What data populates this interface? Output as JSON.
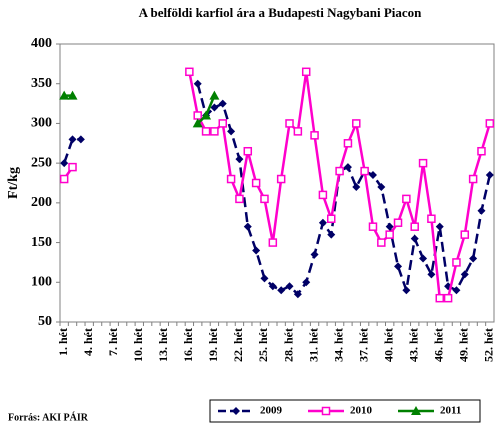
{
  "chart_data": {
    "type": "line",
    "title": "A belföldi karfiol ára a Budapesti Nagybani Piacon",
    "y_label": "Ft/kg",
    "source": "Forrás: AKI PÁIR",
    "categories": [
      "1. hét",
      null,
      null,
      "4. hét",
      null,
      null,
      "7. hét",
      null,
      null,
      "10. hét",
      null,
      null,
      "13. hét",
      null,
      null,
      "16. hét",
      null,
      null,
      "19. hét",
      null,
      null,
      "22. hét",
      null,
      null,
      "25. hét",
      null,
      null,
      "28. hét",
      null,
      null,
      "31. hét",
      null,
      null,
      "34. hét",
      null,
      null,
      "37. hét",
      null,
      null,
      "40. hét",
      null,
      null,
      "43. hét",
      null,
      null,
      "46. hét",
      null,
      null,
      "49. hét",
      null,
      null,
      "52. hét"
    ],
    "series": [
      {
        "name": "2009",
        "color": "#000066",
        "line_style": "dashed",
        "marker": "diamond",
        "values": [
          250,
          280,
          280,
          null,
          null,
          null,
          null,
          null,
          null,
          null,
          null,
          null,
          null,
          null,
          null,
          null,
          350,
          310,
          320,
          325,
          290,
          255,
          170,
          140,
          105,
          95,
          90,
          95,
          85,
          100,
          135,
          175,
          160,
          240,
          245,
          220,
          240,
          235,
          220,
          170,
          120,
          90,
          155,
          130,
          110,
          170,
          95,
          90,
          110,
          130,
          190,
          235
        ]
      },
      {
        "name": "2010",
        "color": "#ff00cc",
        "line_style": "solid",
        "marker": "square",
        "values": [
          230,
          245,
          null,
          null,
          null,
          null,
          null,
          null,
          null,
          null,
          null,
          null,
          null,
          null,
          null,
          365,
          310,
          290,
          290,
          300,
          230,
          205,
          265,
          225,
          205,
          150,
          230,
          300,
          290,
          365,
          285,
          210,
          180,
          240,
          275,
          300,
          240,
          170,
          150,
          160,
          175,
          205,
          170,
          250,
          180,
          80,
          80,
          125,
          160,
          230,
          265,
          300
        ]
      },
      {
        "name": "2011",
        "color": "#008000",
        "line_style": "solid",
        "marker": "triangle",
        "values": [
          335,
          335,
          null,
          null,
          null,
          null,
          null,
          null,
          null,
          null,
          null,
          null,
          null,
          null,
          null,
          null,
          300,
          310,
          335,
          null,
          null,
          null,
          null,
          null,
          null,
          null,
          null,
          null,
          null,
          null,
          null,
          null,
          null,
          null,
          null,
          null,
          null,
          null,
          null,
          null,
          null,
          null,
          null,
          null,
          null,
          null,
          null,
          null,
          null,
          null,
          null,
          null
        ]
      }
    ],
    "ylim": [
      50,
      400
    ],
    "yticks": [
      50,
      100,
      150,
      200,
      250,
      300,
      350,
      400
    ],
    "legend": "bottom"
  }
}
